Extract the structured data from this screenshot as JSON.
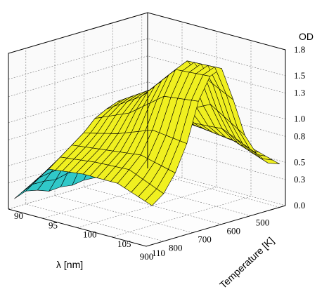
{
  "chart_data": {
    "type": "surface",
    "title": "",
    "xlabel": "λ [nm]",
    "ylabel": "Temperature [K]",
    "zlabel": "OD",
    "x_ticks": [
      "500",
      "600",
      "700",
      "800",
      "900"
    ],
    "y_ticks": [
      "90",
      "95",
      "100",
      "105",
      "110"
    ],
    "z_ticks": [
      "0.0",
      "0.3",
      "0.5",
      "0.8",
      "1.0",
      "1.3",
      "1.5",
      "1.8"
    ],
    "xlim": [
      480,
      960
    ],
    "ylim": [
      90,
      110
    ],
    "zlim": [
      0,
      1.8
    ],
    "grid": true,
    "colors": {
      "surface": "#f0f020",
      "surface_low_wavelength_region": "#30c8c8",
      "edge": "#000000"
    },
    "surface_profiles": [
      {
        "temperature": 90,
        "wavelength": [
          500,
          540,
          580,
          620,
          660,
          700,
          740,
          780,
          820,
          860,
          900,
          940
        ],
        "od": [
          0.12,
          0.1,
          0.08,
          0.1,
          0.07,
          0.08,
          0.06,
          0.08,
          0.07,
          0.12,
          0.15,
          0.1
        ]
      },
      {
        "temperature": 95,
        "wavelength": [
          500,
          540,
          580,
          620,
          660,
          700,
          740,
          780,
          820,
          860,
          900,
          940
        ],
        "od": [
          0.8,
          0.78,
          0.82,
          0.9,
          1.02,
          1.1,
          1.05,
          0.98,
          0.85,
          0.75,
          0.65,
          0.55
        ]
      },
      {
        "temperature": 100,
        "wavelength": [
          500,
          540,
          580,
          620,
          660,
          700,
          740,
          780,
          820,
          860,
          900,
          940
        ],
        "od": [
          0.7,
          0.75,
          0.85,
          1.0,
          1.2,
          1.35,
          1.3,
          1.15,
          0.95,
          0.8,
          0.7,
          0.6
        ]
      },
      {
        "temperature": 105,
        "wavelength": [
          500,
          540,
          580,
          620,
          660,
          700,
          740,
          780,
          820,
          860,
          900,
          940
        ],
        "od": [
          0.62,
          0.7,
          0.88,
          1.2,
          1.6,
          1.78,
          1.72,
          1.45,
          1.1,
          0.85,
          0.72,
          0.6
        ]
      },
      {
        "temperature": 110,
        "wavelength": [
          500,
          540,
          580,
          620,
          660,
          700,
          740,
          780,
          820,
          860,
          900,
          940
        ],
        "od": [
          0.5,
          0.55,
          0.7,
          0.95,
          1.4,
          1.8,
          1.75,
          1.5,
          1.05,
          0.75,
          0.55,
          0.45
        ]
      }
    ]
  }
}
